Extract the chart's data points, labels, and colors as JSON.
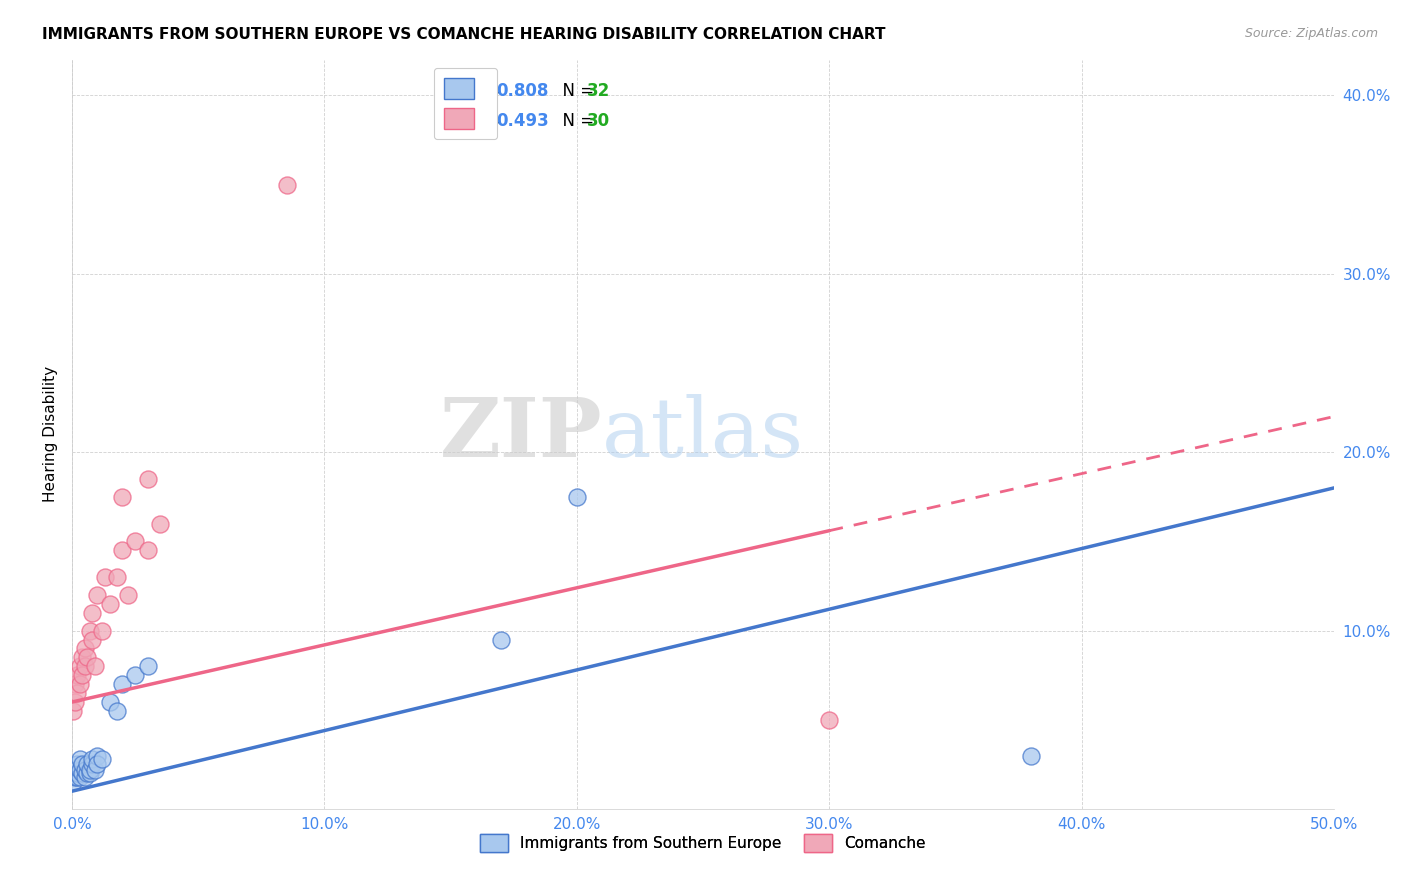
{
  "title": "IMMIGRANTS FROM SOUTHERN EUROPE VS COMANCHE HEARING DISABILITY CORRELATION CHART",
  "source": "Source: ZipAtlas.com",
  "ylabel": "Hearing Disability",
  "xlim": [
    0.0,
    0.5
  ],
  "ylim": [
    0.0,
    0.42
  ],
  "xticks": [
    0.0,
    0.1,
    0.2,
    0.3,
    0.4,
    0.5
  ],
  "yticks": [
    0.1,
    0.2,
    0.3,
    0.4
  ],
  "blue_R": 0.808,
  "blue_N": 32,
  "pink_R": 0.493,
  "pink_N": 30,
  "blue_color": "#A8C8EE",
  "pink_color": "#F0A8B8",
  "blue_line_color": "#4477CC",
  "pink_line_color": "#EE6688",
  "legend_R_color": "#4488EE",
  "legend_N_color": "#22AA22",
  "watermark_zip": "ZIP",
  "watermark_atlas": "atlas",
  "blue_label": "Immigrants from Southern Europe",
  "pink_label": "Comanche",
  "blue_scatter_x": [
    0.0005,
    0.001,
    0.001,
    0.0015,
    0.002,
    0.002,
    0.002,
    0.003,
    0.003,
    0.003,
    0.004,
    0.004,
    0.005,
    0.005,
    0.006,
    0.006,
    0.007,
    0.007,
    0.008,
    0.008,
    0.009,
    0.01,
    0.01,
    0.012,
    0.015,
    0.018,
    0.02,
    0.025,
    0.03,
    0.2,
    0.38,
    0.17
  ],
  "blue_scatter_y": [
    0.015,
    0.02,
    0.018,
    0.022,
    0.018,
    0.02,
    0.025,
    0.018,
    0.022,
    0.028,
    0.02,
    0.025,
    0.018,
    0.022,
    0.02,
    0.025,
    0.02,
    0.022,
    0.025,
    0.028,
    0.022,
    0.03,
    0.025,
    0.028,
    0.06,
    0.055,
    0.07,
    0.075,
    0.08,
    0.175,
    0.03,
    0.095
  ],
  "pink_scatter_x": [
    0.0005,
    0.001,
    0.001,
    0.002,
    0.002,
    0.003,
    0.003,
    0.004,
    0.004,
    0.005,
    0.005,
    0.006,
    0.007,
    0.008,
    0.008,
    0.009,
    0.01,
    0.012,
    0.013,
    0.015,
    0.018,
    0.02,
    0.022,
    0.025,
    0.03,
    0.035,
    0.02,
    0.03,
    0.3,
    0.085
  ],
  "pink_scatter_y": [
    0.055,
    0.06,
    0.07,
    0.065,
    0.075,
    0.07,
    0.08,
    0.075,
    0.085,
    0.08,
    0.09,
    0.085,
    0.1,
    0.095,
    0.11,
    0.08,
    0.12,
    0.1,
    0.13,
    0.115,
    0.13,
    0.145,
    0.12,
    0.15,
    0.145,
    0.16,
    0.175,
    0.185,
    0.05,
    0.35
  ],
  "blue_line_x0": 0.0,
  "blue_line_y0": 0.01,
  "blue_line_x1": 0.5,
  "blue_line_y1": 0.18,
  "pink_line_x0": 0.0,
  "pink_line_y0": 0.06,
  "pink_line_x1": 0.5,
  "pink_line_y1": 0.22,
  "pink_line_dash_x0": 0.3,
  "pink_line_dash_x1": 0.5
}
